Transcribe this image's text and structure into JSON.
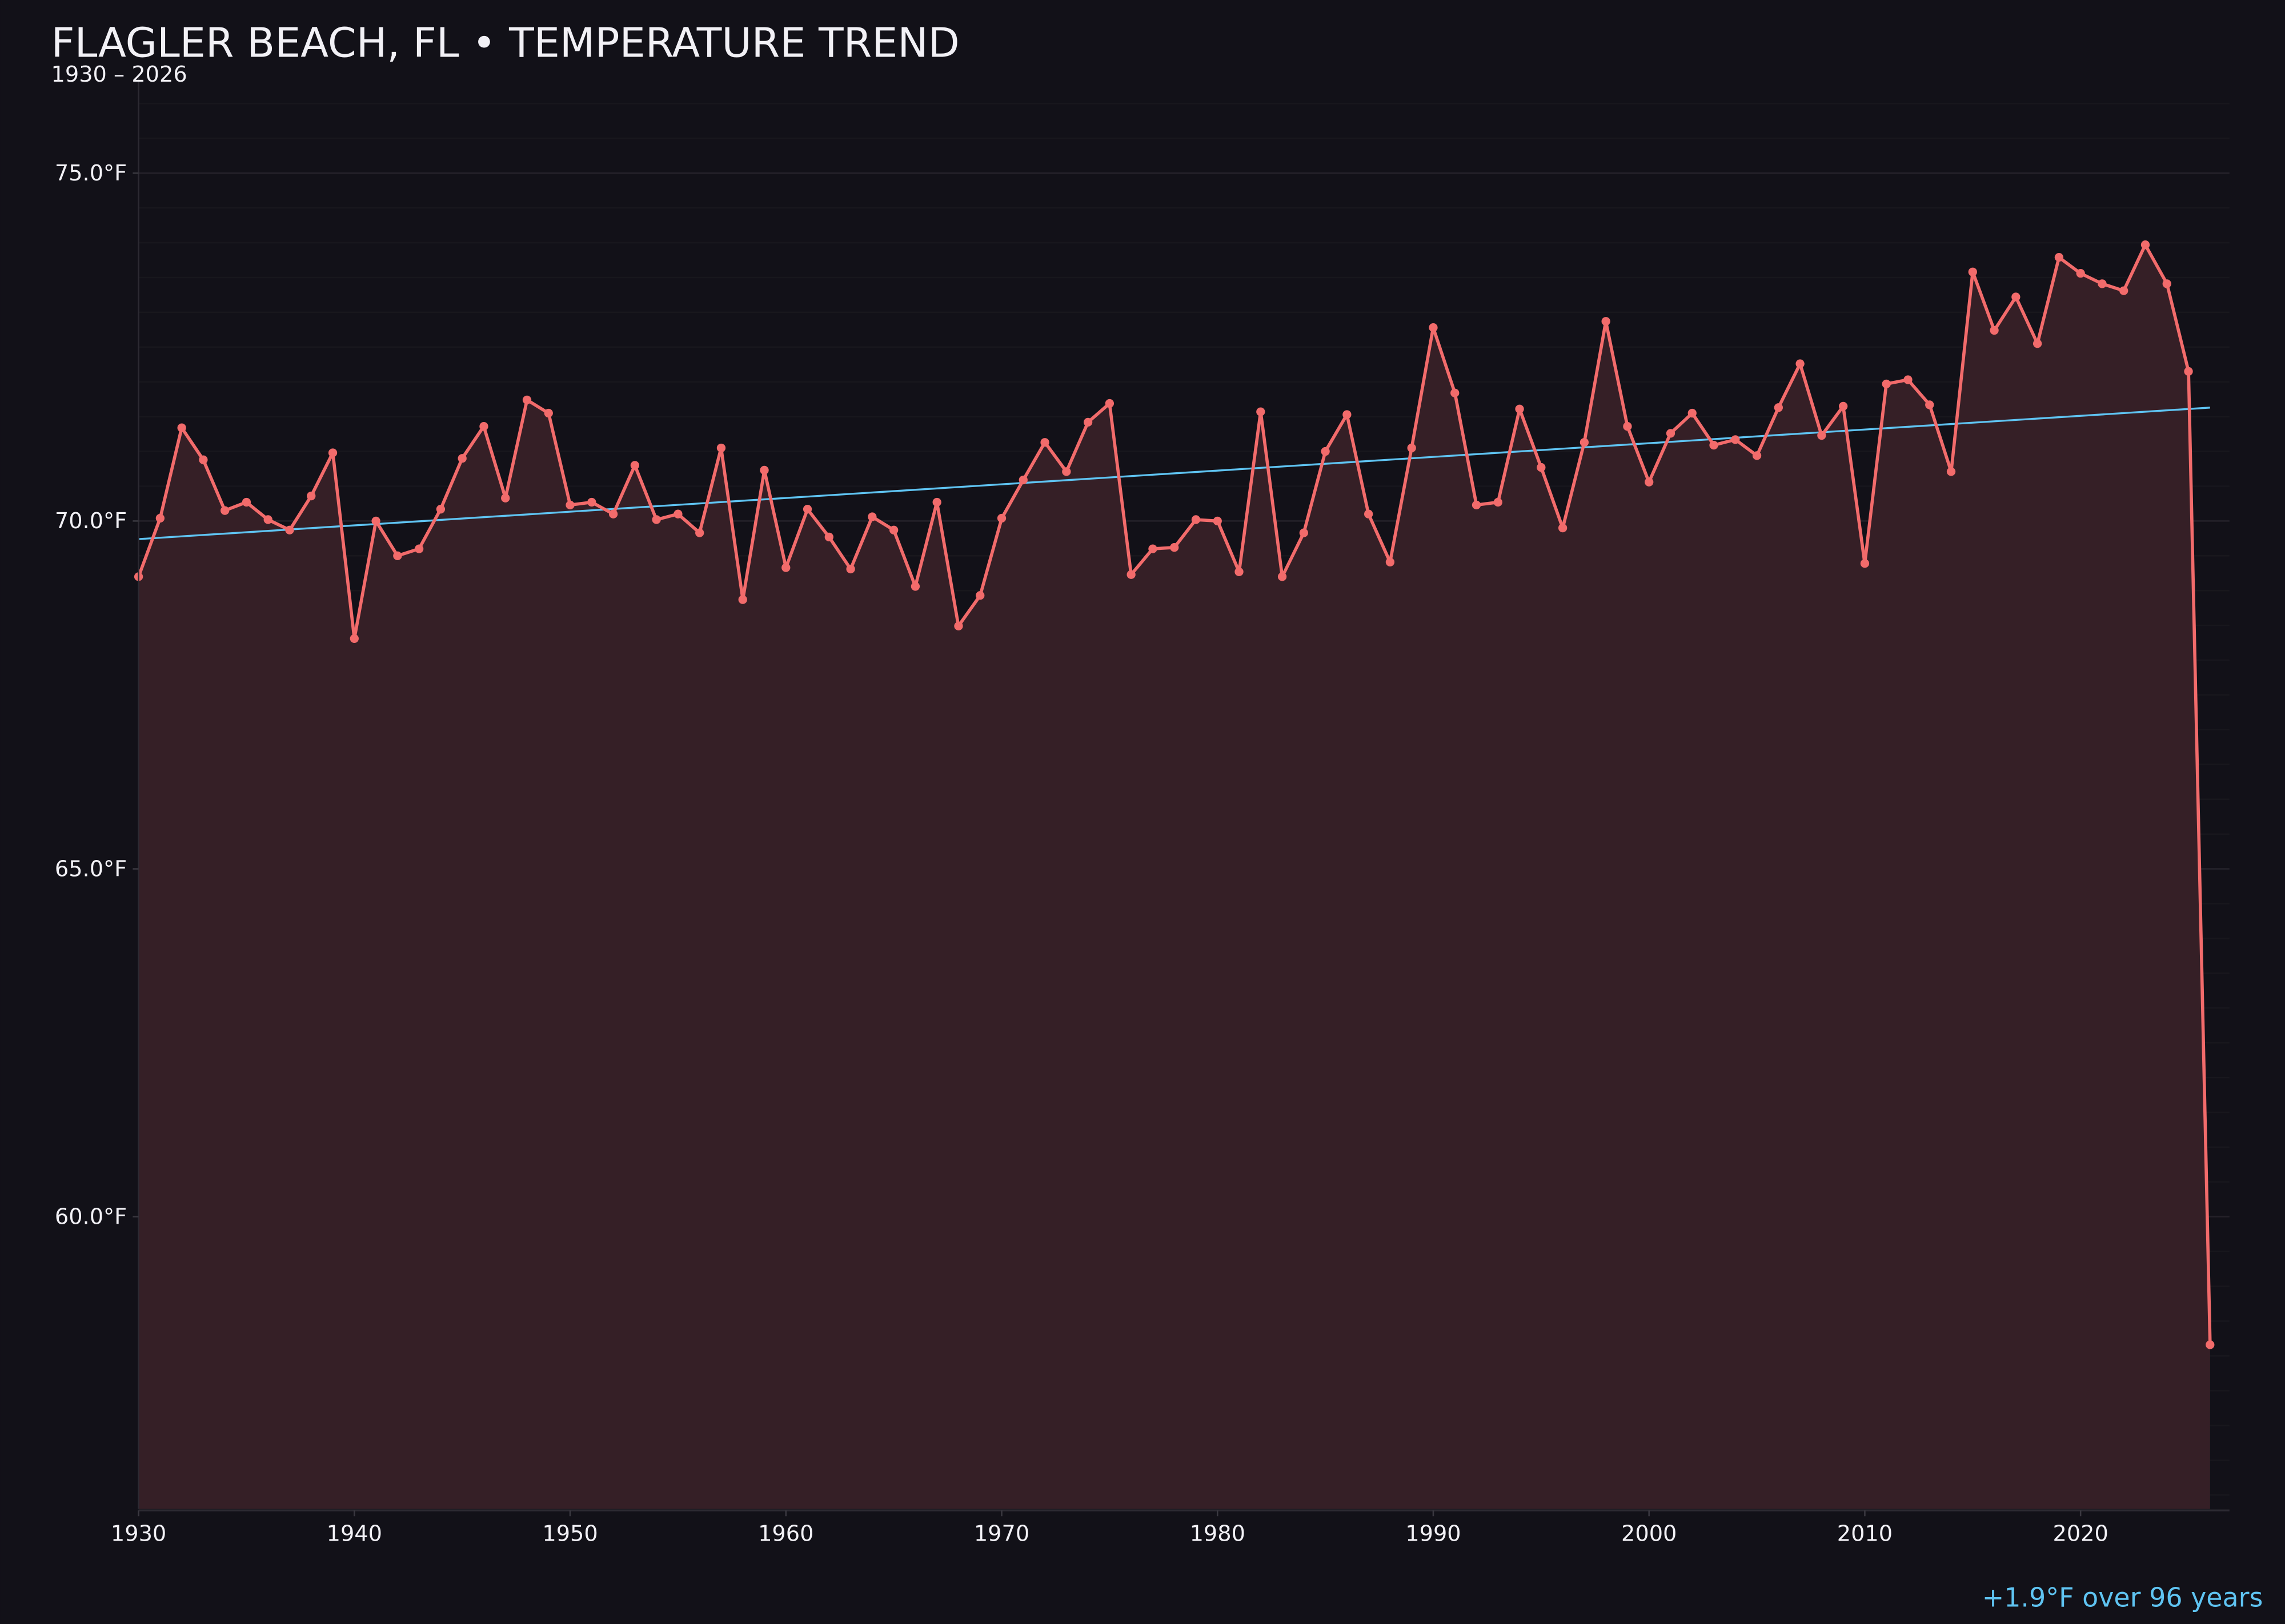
{
  "header": {
    "title": "FLAGLER BEACH, FL • TEMPERATURE TREND",
    "subtitle": "1930 – 2026"
  },
  "footer": {
    "trend_note": "+1.9°F over 96 years"
  },
  "colors": {
    "background": "#121118",
    "line": "#f26b6b",
    "fill": "#351f26",
    "trend": "#5fc4f2",
    "text": "#f2f1f6",
    "grid": "#221f26"
  },
  "chart_data": {
    "type": "line",
    "title": "FLAGLER BEACH, FL • TEMPERATURE TREND",
    "subtitle": "1930 – 2026",
    "xlabel": "",
    "ylabel": "",
    "xlim": [
      1930,
      2027
    ],
    "ylim": [
      55.8,
      76.4
    ],
    "grid": true,
    "x_ticks": [
      1930,
      1940,
      1950,
      1960,
      1970,
      1980,
      1990,
      2000,
      2010,
      2020
    ],
    "x_tick_labels": [
      "1930",
      "1940",
      "1950",
      "1960",
      "1970",
      "1980",
      "1990",
      "2000",
      "2010",
      "2020"
    ],
    "y_ticks": [
      60,
      65,
      70,
      75
    ],
    "y_tick_labels": [
      "60.0°F",
      "65.0°F",
      "70.0°F",
      "75.0°F"
    ],
    "x": [
      1930,
      1931,
      1932,
      1933,
      1934,
      1935,
      1936,
      1937,
      1938,
      1939,
      1940,
      1941,
      1942,
      1943,
      1944,
      1945,
      1946,
      1947,
      1948,
      1949,
      1950,
      1951,
      1952,
      1953,
      1954,
      1955,
      1956,
      1957,
      1958,
      1959,
      1960,
      1961,
      1962,
      1963,
      1964,
      1965,
      1966,
      1967,
      1968,
      1969,
      1970,
      1971,
      1972,
      1973,
      1974,
      1975,
      1976,
      1977,
      1978,
      1979,
      1980,
      1981,
      1982,
      1983,
      1984,
      1985,
      1986,
      1987,
      1988,
      1989,
      1990,
      1991,
      1992,
      1993,
      1994,
      1995,
      1996,
      1997,
      1998,
      1999,
      2000,
      2001,
      2002,
      2003,
      2004,
      2005,
      2006,
      2007,
      2008,
      2009,
      2010,
      2011,
      2012,
      2013,
      2014,
      2015,
      2016,
      2017,
      2018,
      2019,
      2020,
      2021,
      2022,
      2023,
      2024,
      2025,
      2026
    ],
    "series": [
      {
        "values": [
          69.2,
          70.04,
          71.34,
          70.88,
          70.15,
          70.27,
          70.02,
          69.87,
          70.36,
          70.98,
          68.31,
          70.0,
          69.5,
          69.6,
          70.17,
          70.9,
          71.36,
          70.33,
          71.74,
          71.55,
          70.23,
          70.27,
          70.1,
          70.8,
          70.02,
          70.1,
          69.83,
          71.05,
          68.87,
          70.73,
          69.33,
          70.17,
          69.77,
          69.31,
          70.06,
          69.87,
          69.06,
          70.27,
          68.49,
          68.93,
          70.04,
          70.59,
          71.13,
          70.71,
          71.42,
          71.69,
          69.23,
          69.6,
          69.62,
          70.02,
          70.0,
          69.27,
          71.57,
          69.2,
          69.83,
          71.0,
          71.53,
          70.1,
          69.41,
          71.05,
          72.78,
          71.84,
          70.23,
          70.27,
          71.61,
          70.77,
          69.9,
          71.13,
          72.87,
          71.36,
          70.56,
          71.26,
          71.55,
          71.09,
          71.17,
          70.94,
          71.63,
          72.26,
          71.23,
          71.65,
          69.39,
          71.97,
          72.03,
          71.67,
          70.71,
          73.58,
          72.74,
          73.22,
          72.55,
          73.79,
          73.56,
          73.41,
          73.31,
          73.97,
          73.41,
          72.15,
          58.16
        ]
      }
    ],
    "trend_line": {
      "x": [
        1930,
        2026
      ],
      "y": [
        69.74,
        71.63
      ]
    },
    "annotations": [
      "+1.9°F over 96 years"
    ]
  }
}
